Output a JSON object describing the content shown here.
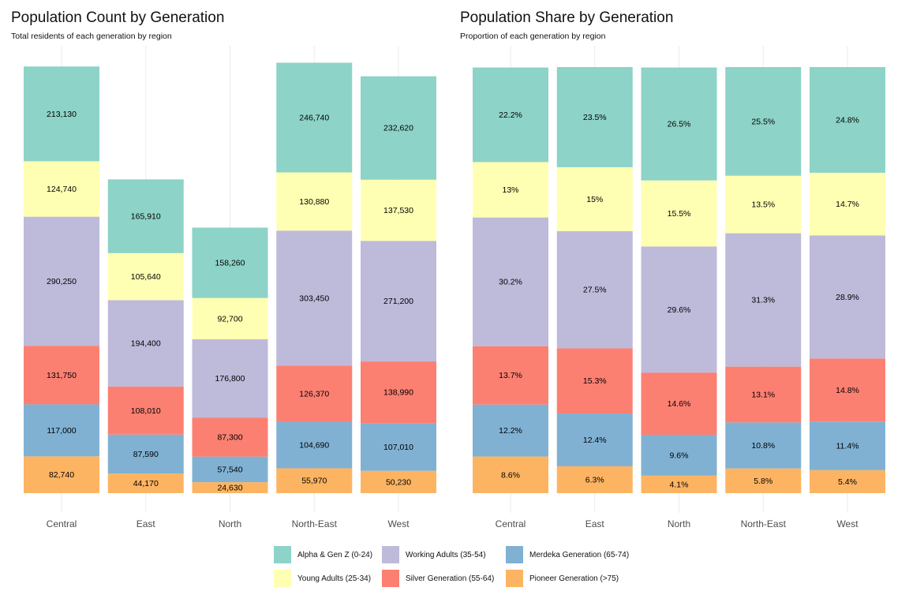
{
  "colors": {
    "alpha": "#8DD3C7",
    "young": "#FFFFB3",
    "working": "#BEBADA",
    "silver": "#FB8072",
    "merdeka": "#80B1D3",
    "pioneer": "#FDB462",
    "grid": "#EBEBEB",
    "axis_text": "#4D4D4D"
  },
  "left_panel": {
    "title": "Population Count by Generation",
    "subtitle": "Total residents of each generation by region"
  },
  "right_panel": {
    "title": "Population Share by Generation",
    "subtitle": "Proportion of each generation by region"
  },
  "legend": [
    {
      "key": "alpha",
      "label": "Alpha & Gen Z (0-24)"
    },
    {
      "key": "young",
      "label": "Young Adults (25-34)"
    },
    {
      "key": "working",
      "label": "Working Adults (35-54)"
    },
    {
      "key": "silver",
      "label": "Silver Generation (55-64)"
    },
    {
      "key": "merdeka",
      "label": "Merdeka Generation (65-74)"
    },
    {
      "key": "pioneer",
      "label": "Pioneer Generation (>75)"
    }
  ],
  "chart_data": [
    {
      "type": "bar",
      "stacked": true,
      "title": "Population Count by Generation",
      "subtitle": "Total residents of each generation by region",
      "categories": [
        "Central",
        "East",
        "North",
        "North-East",
        "West"
      ],
      "ylim": [
        0,
        1120000
      ],
      "grid": "vertical",
      "series": [
        {
          "name": "Pioneer Generation (>75)",
          "key": "pioneer",
          "values": [
            82740,
            44170,
            24630,
            55970,
            50230
          ],
          "labels": [
            "82,740",
            "44,170",
            "24,630",
            "55,970",
            "50,230"
          ]
        },
        {
          "name": "Merdeka Generation (65-74)",
          "key": "merdeka",
          "values": [
            117000,
            87590,
            57540,
            104690,
            107010
          ],
          "labels": [
            "117,000",
            "87,590",
            "57,540",
            "104,690",
            "107,010"
          ]
        },
        {
          "name": "Silver Generation (55-64)",
          "key": "silver",
          "values": [
            131750,
            108010,
            87300,
            126370,
            138990
          ],
          "labels": [
            "131,750",
            "108,010",
            "87,300",
            "126,370",
            "138,990"
          ]
        },
        {
          "name": "Working Adults (35-54)",
          "key": "working",
          "values": [
            290250,
            194400,
            176800,
            303450,
            271200
          ],
          "labels": [
            "290,250",
            "194,400",
            "176,800",
            "303,450",
            "271,200"
          ]
        },
        {
          "name": "Young Adults (25-34)",
          "key": "young",
          "values": [
            124740,
            105640,
            92700,
            130880,
            137530
          ],
          "labels": [
            "124,740",
            "105,640",
            "92,700",
            "130,880",
            "137,530"
          ]
        },
        {
          "name": "Alpha & Gen Z (0-24)",
          "key": "alpha",
          "values": [
            213130,
            165910,
            158260,
            246740,
            232620
          ],
          "labels": [
            "213,130",
            "165,910",
            "158,260",
            "246,740",
            "232,620"
          ]
        }
      ]
    },
    {
      "type": "bar",
      "stacked": true,
      "title": "Population Share by Generation",
      "subtitle": "Proportion of each generation by region",
      "categories": [
        "Central",
        "East",
        "North",
        "North-East",
        "West"
      ],
      "ylim": [
        0,
        100
      ],
      "grid": "vertical",
      "series": [
        {
          "name": "Pioneer Generation (>75)",
          "key": "pioneer",
          "values": [
            8.6,
            6.3,
            4.1,
            5.8,
            5.4
          ],
          "labels": [
            "8.6%",
            "6.3%",
            "4.1%",
            "5.8%",
            "5.4%"
          ]
        },
        {
          "name": "Merdeka Generation (65-74)",
          "key": "merdeka",
          "values": [
            12.2,
            12.4,
            9.6,
            10.8,
            11.4
          ],
          "labels": [
            "12.2%",
            "12.4%",
            "9.6%",
            "10.8%",
            "11.4%"
          ]
        },
        {
          "name": "Silver Generation (55-64)",
          "key": "silver",
          "values": [
            13.7,
            15.3,
            14.6,
            13.1,
            14.8
          ],
          "labels": [
            "13.7%",
            "15.3%",
            "14.6%",
            "13.1%",
            "14.8%"
          ]
        },
        {
          "name": "Working Adults (35-54)",
          "key": "working",
          "values": [
            30.2,
            27.5,
            29.6,
            31.3,
            28.9
          ],
          "labels": [
            "30.2%",
            "27.5%",
            "29.6%",
            "31.3%",
            "28.9%"
          ]
        },
        {
          "name": "Young Adults (25-34)",
          "key": "young",
          "values": [
            13,
            15,
            15.5,
            13.5,
            14.7
          ],
          "labels": [
            "13%",
            "15%",
            "15.5%",
            "13.5%",
            "14.7%"
          ]
        },
        {
          "name": "Alpha & Gen Z (0-24)",
          "key": "alpha",
          "values": [
            22.2,
            23.5,
            26.5,
            25.5,
            24.8
          ],
          "labels": [
            "22.2%",
            "23.5%",
            "26.5%",
            "25.5%",
            "24.8%"
          ]
        }
      ]
    }
  ]
}
